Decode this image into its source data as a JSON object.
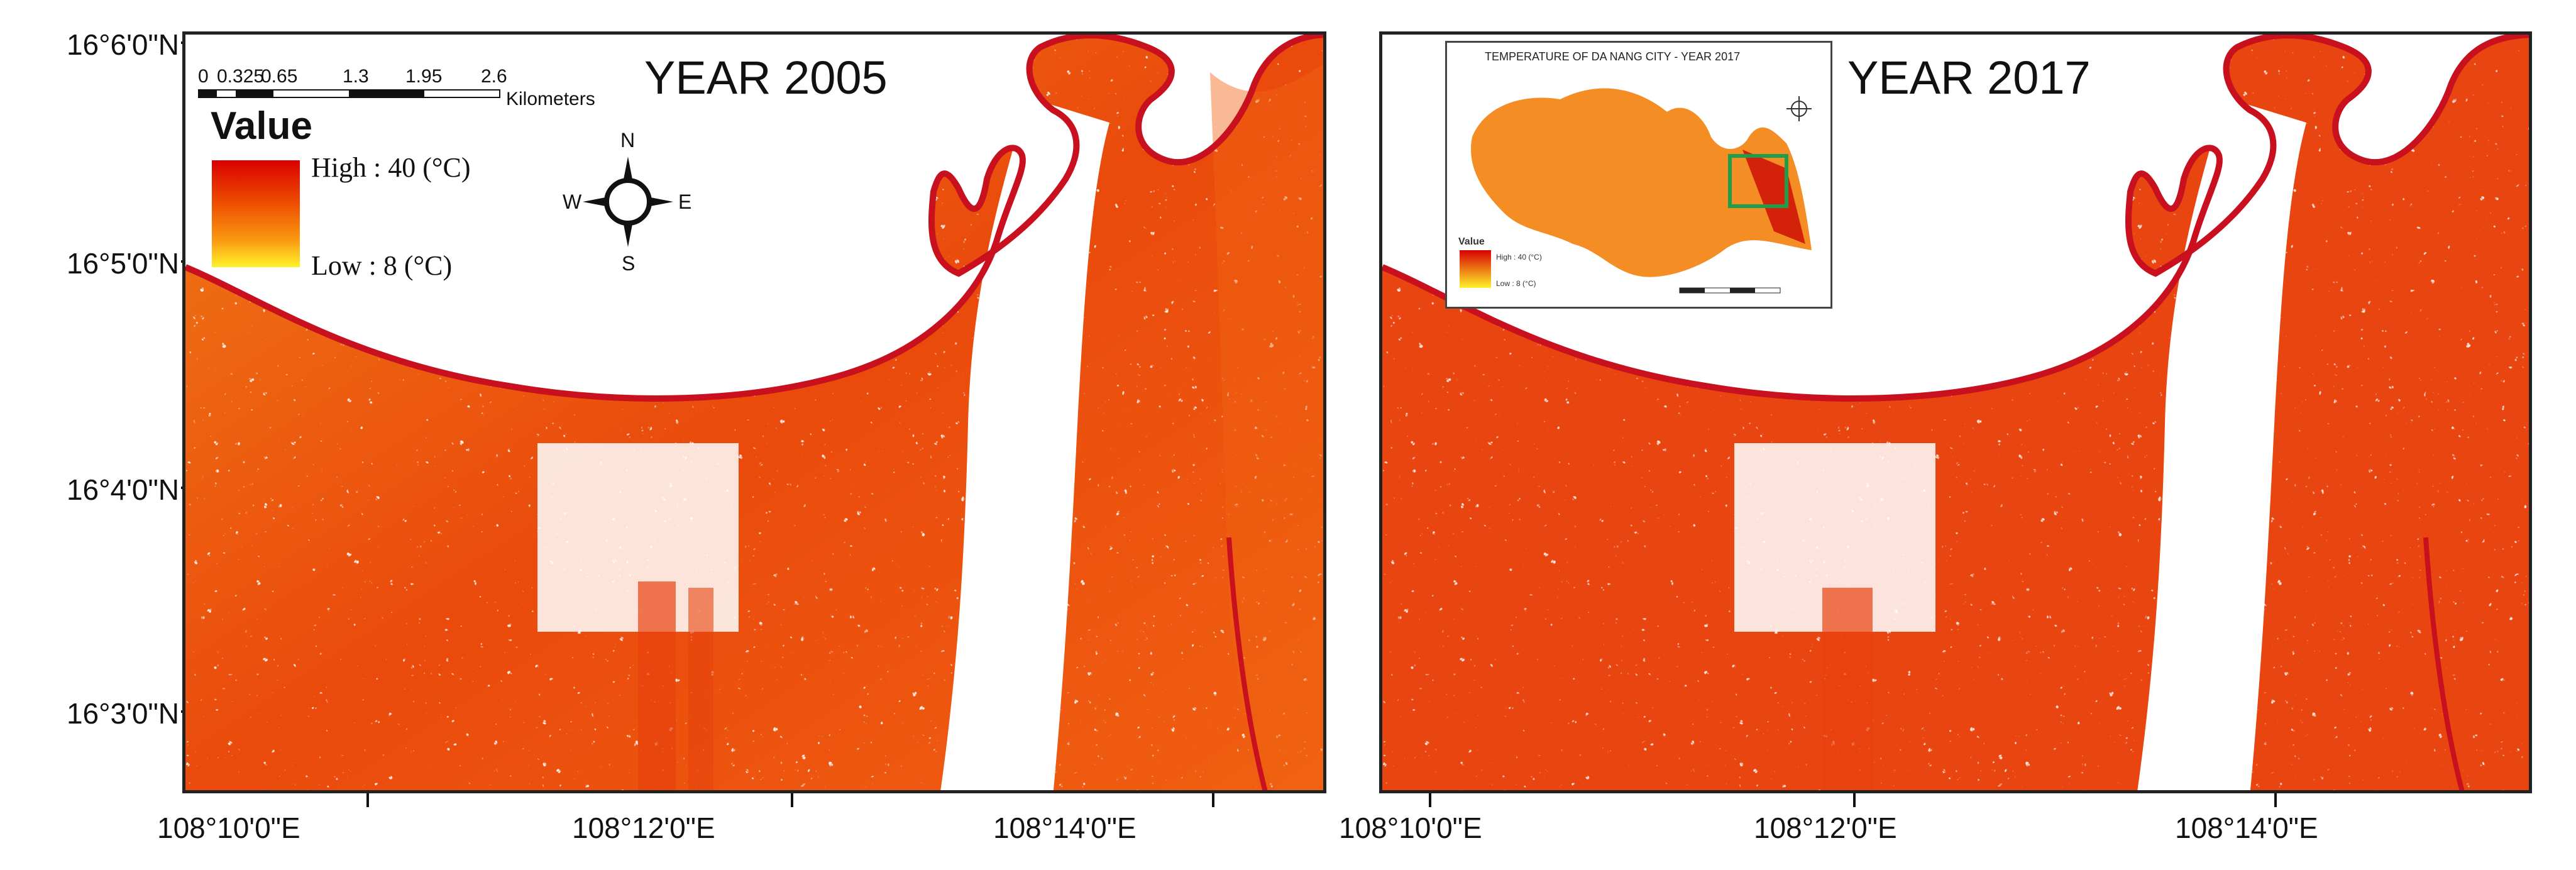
{
  "latitude_labels": [
    "16°6'0\"N",
    "16°5'0\"N",
    "16°4'0\"N",
    "16°3'0\"N"
  ],
  "longitude_labels": [
    "108°10'0\"E",
    "108°12'0\"E",
    "108°14'0\"E"
  ],
  "panels": [
    {
      "title": "YEAR 2005"
    },
    {
      "title": "YEAR 2017"
    }
  ],
  "legend": {
    "title": "Value",
    "high": "High : 40 (°C)",
    "low": "Low : 8 (°C)",
    "high_color": "#d90000",
    "low_color": "#fff229"
  },
  "scale_bar": {
    "ticks": [
      "0",
      "0.325",
      "0.65",
      "1.3",
      "1.95",
      "2.6"
    ],
    "unit": "Kilometers"
  },
  "north_arrow": {
    "n": "N",
    "s": "S",
    "e": "E",
    "w": "W"
  },
  "inset": {
    "title": "TEMPERATURE OF DA NANG CITY - YEAR 2017",
    "legend_title": "Value",
    "legend_high": "High : 40 (°C)",
    "legend_low": "Low : 8 (°C)",
    "highlight_color": "#1e9e4a"
  },
  "colors": {
    "coast_line": "#c8101e",
    "heat_dense": "#e8420e",
    "heat_mid": "#f06a12",
    "heat_light": "#f7a238",
    "water": "#ffffff"
  }
}
